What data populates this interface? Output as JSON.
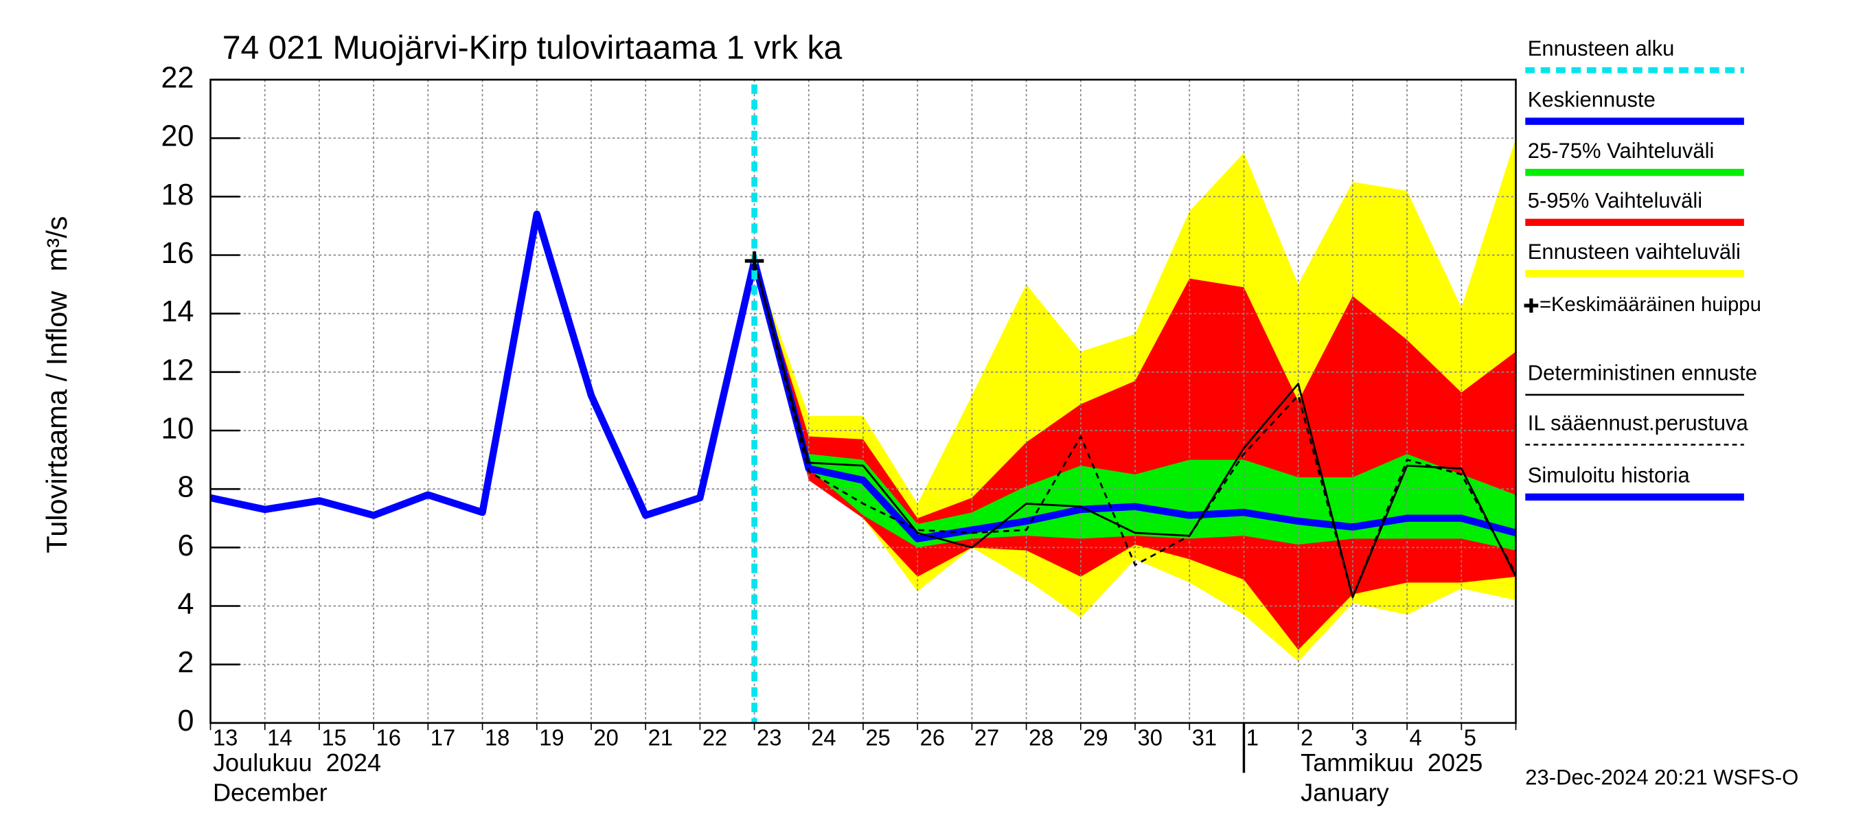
{
  "chart_data": {
    "type": "line",
    "title": "74 021 Muojärvi-Kirp tulovirtaama 1 vrk ka",
    "y_label": "Tulovirtaama / Inflow",
    "y_unit": "m³/s",
    "months": [
      "Joulukuu  2024",
      "December",
      "Tammikuu  2025",
      "January"
    ],
    "timestamp": "23-Dec-2024 20:21 WSFS-O",
    "categories": [
      "13",
      "14",
      "15",
      "16",
      "17",
      "18",
      "19",
      "20",
      "21",
      "22",
      "23",
      "24",
      "25",
      "26",
      "27",
      "28",
      "29",
      "30",
      "31",
      "1",
      "2",
      "3",
      "4",
      "5",
      null
    ],
    "ylim": [
      0,
      22
    ],
    "yticks": [
      0,
      2,
      4,
      6,
      8,
      10,
      12,
      14,
      16,
      18,
      20,
      22
    ],
    "grid": true,
    "forecast_start": {
      "name": "Ennusteen alku",
      "color": "#00e5ee"
    },
    "peak": {
      "name": "=Keskimääräinen huippu",
      "color": "#000000"
    },
    "bands": [
      {
        "name": "Ennusteen vaihteluväli",
        "color": "#ffff00",
        "upper": [
          null,
          null,
          null,
          null,
          null,
          null,
          null,
          null,
          null,
          null,
          15.8,
          10.5,
          10.5,
          7.5,
          11.2,
          15.0,
          12.7,
          13.3,
          17.5,
          19.5,
          15.0,
          18.5,
          18.2,
          14.2,
          20.0
        ],
        "lower": [
          null,
          null,
          null,
          null,
          null,
          null,
          null,
          null,
          null,
          null,
          15.8,
          8.5,
          7.0,
          4.5,
          6.0,
          4.9,
          3.6,
          5.6,
          4.8,
          3.7,
          2.1,
          4.1,
          3.7,
          4.6,
          4.2
        ]
      },
      {
        "name": "5-95% Vaihteluväli",
        "color": "#ff0000",
        "upper": [
          null,
          null,
          null,
          null,
          null,
          null,
          null,
          null,
          null,
          null,
          15.8,
          9.8,
          9.7,
          7.0,
          7.7,
          9.6,
          10.9,
          11.7,
          15.2,
          14.9,
          11.0,
          14.6,
          13.1,
          11.3,
          12.7
        ],
        "lower": [
          null,
          null,
          null,
          null,
          null,
          null,
          null,
          null,
          null,
          null,
          15.8,
          8.3,
          7.0,
          5.0,
          6.0,
          5.9,
          5.0,
          6.1,
          5.6,
          4.9,
          2.5,
          4.4,
          4.8,
          4.8,
          5.0
        ]
      },
      {
        "name": "25-75% Vaihteluväli",
        "color": "#00ee00",
        "upper": [
          null,
          null,
          null,
          null,
          null,
          null,
          null,
          null,
          null,
          null,
          15.8,
          9.2,
          9.0,
          6.8,
          7.2,
          8.1,
          8.8,
          8.5,
          9.0,
          9.0,
          8.4,
          8.4,
          9.2,
          8.5,
          7.8
        ],
        "lower": [
          null,
          null,
          null,
          null,
          null,
          null,
          null,
          null,
          null,
          null,
          15.8,
          8.7,
          7.1,
          6.0,
          6.3,
          6.4,
          6.3,
          6.4,
          6.3,
          6.4,
          6.1,
          6.3,
          6.3,
          6.3,
          5.9
        ]
      }
    ],
    "series": [
      {
        "name": "Simuloitu historia",
        "color": "#0000ff",
        "style": "thick",
        "values": [
          7.7,
          7.3,
          7.6,
          7.1,
          7.8,
          7.2,
          17.4,
          11.2,
          7.1,
          7.7,
          15.8,
          null,
          null,
          null,
          null,
          null,
          null,
          null,
          null,
          null,
          null,
          null,
          null,
          null,
          null
        ]
      },
      {
        "name": "Keskiennuste",
        "color": "#0000ff",
        "style": "thick",
        "values": [
          null,
          null,
          null,
          null,
          null,
          null,
          null,
          null,
          null,
          null,
          15.8,
          8.7,
          8.3,
          6.3,
          6.6,
          6.9,
          7.3,
          7.4,
          7.1,
          7.2,
          6.9,
          6.7,
          7.0,
          7.0,
          6.5
        ]
      },
      {
        "name": "Deterministinen ennuste",
        "color": "#000000",
        "style": "thin",
        "values": [
          null,
          null,
          null,
          null,
          null,
          null,
          null,
          null,
          null,
          null,
          15.8,
          8.9,
          8.8,
          6.5,
          6.0,
          7.5,
          7.4,
          6.5,
          6.4,
          9.4,
          11.6,
          4.3,
          8.8,
          8.7,
          5.0
        ]
      },
      {
        "name": "IL sääennust.perustuva",
        "color": "#000000",
        "style": "dashed",
        "values": [
          null,
          null,
          null,
          null,
          null,
          null,
          null,
          null,
          null,
          null,
          15.8,
          8.6,
          7.5,
          6.6,
          6.5,
          6.6,
          9.8,
          5.4,
          6.4,
          9.2,
          11.2,
          4.3,
          9.0,
          8.5,
          5.1
        ]
      }
    ]
  }
}
